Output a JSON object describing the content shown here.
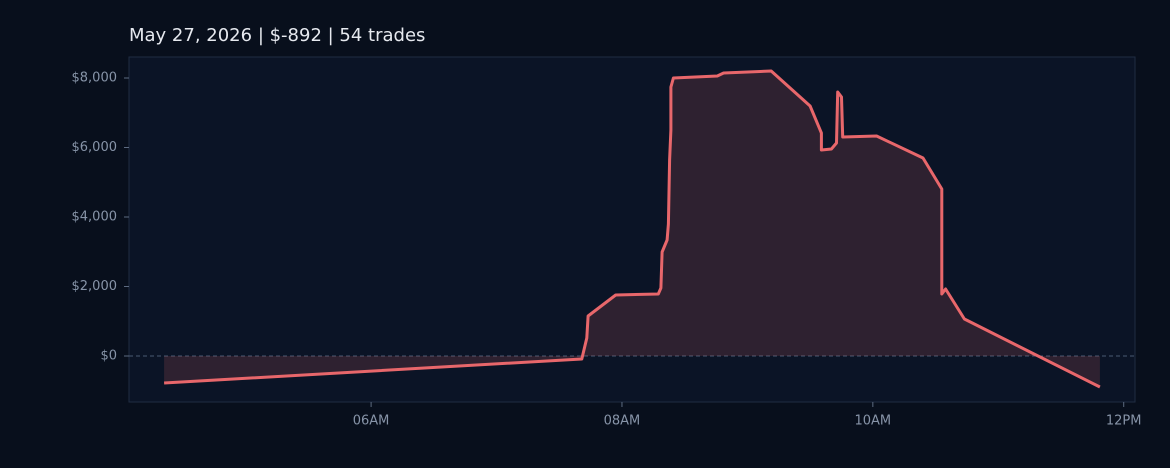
{
  "chart_data": {
    "type": "area_line",
    "title": "May 27, 2026  |  $-892  |  54 trades",
    "color": "#e8676b",
    "x": [
      4.35,
      7.68,
      7.72,
      7.73,
      7.95,
      8.29,
      8.31,
      8.32,
      8.36,
      8.37,
      8.38,
      8.39,
      8.39,
      8.41,
      8.76,
      8.81,
      9.19,
      9.5,
      9.59,
      9.59,
      9.67,
      9.71,
      9.72,
      9.75,
      9.76,
      10.03,
      10.4,
      10.55,
      10.55,
      10.58,
      10.73,
      11.81
    ],
    "values": [
      -777,
      -86,
      518,
      1151,
      1755,
      1784,
      1957,
      2993,
      3338,
      3799,
      5640,
      6504,
      7741,
      8000,
      8058,
      8144,
      8201,
      7194,
      6417,
      5928,
      5957,
      6129,
      7597,
      7453,
      6302,
      6331,
      5698,
      4806,
      1784,
      1928,
      1065,
      -892
    ],
    "xlim": [
      4.07,
      12.09
    ],
    "xticks": [
      {
        "value": 6,
        "label": "06AM"
      },
      {
        "value": 8,
        "label": "08AM"
      },
      {
        "value": 10,
        "label": "10AM"
      },
      {
        "value": 12,
        "label": "12PM"
      }
    ],
    "ylim": [
      -1324,
      8604
    ],
    "yticks": [
      {
        "value": 0,
        "label": "$0"
      },
      {
        "value": 2000,
        "label": "$2,000"
      },
      {
        "value": 4000,
        "label": "$4,000"
      },
      {
        "value": 6000,
        "label": "$6,000"
      },
      {
        "value": 8000,
        "label": "$8,000"
      }
    ]
  }
}
